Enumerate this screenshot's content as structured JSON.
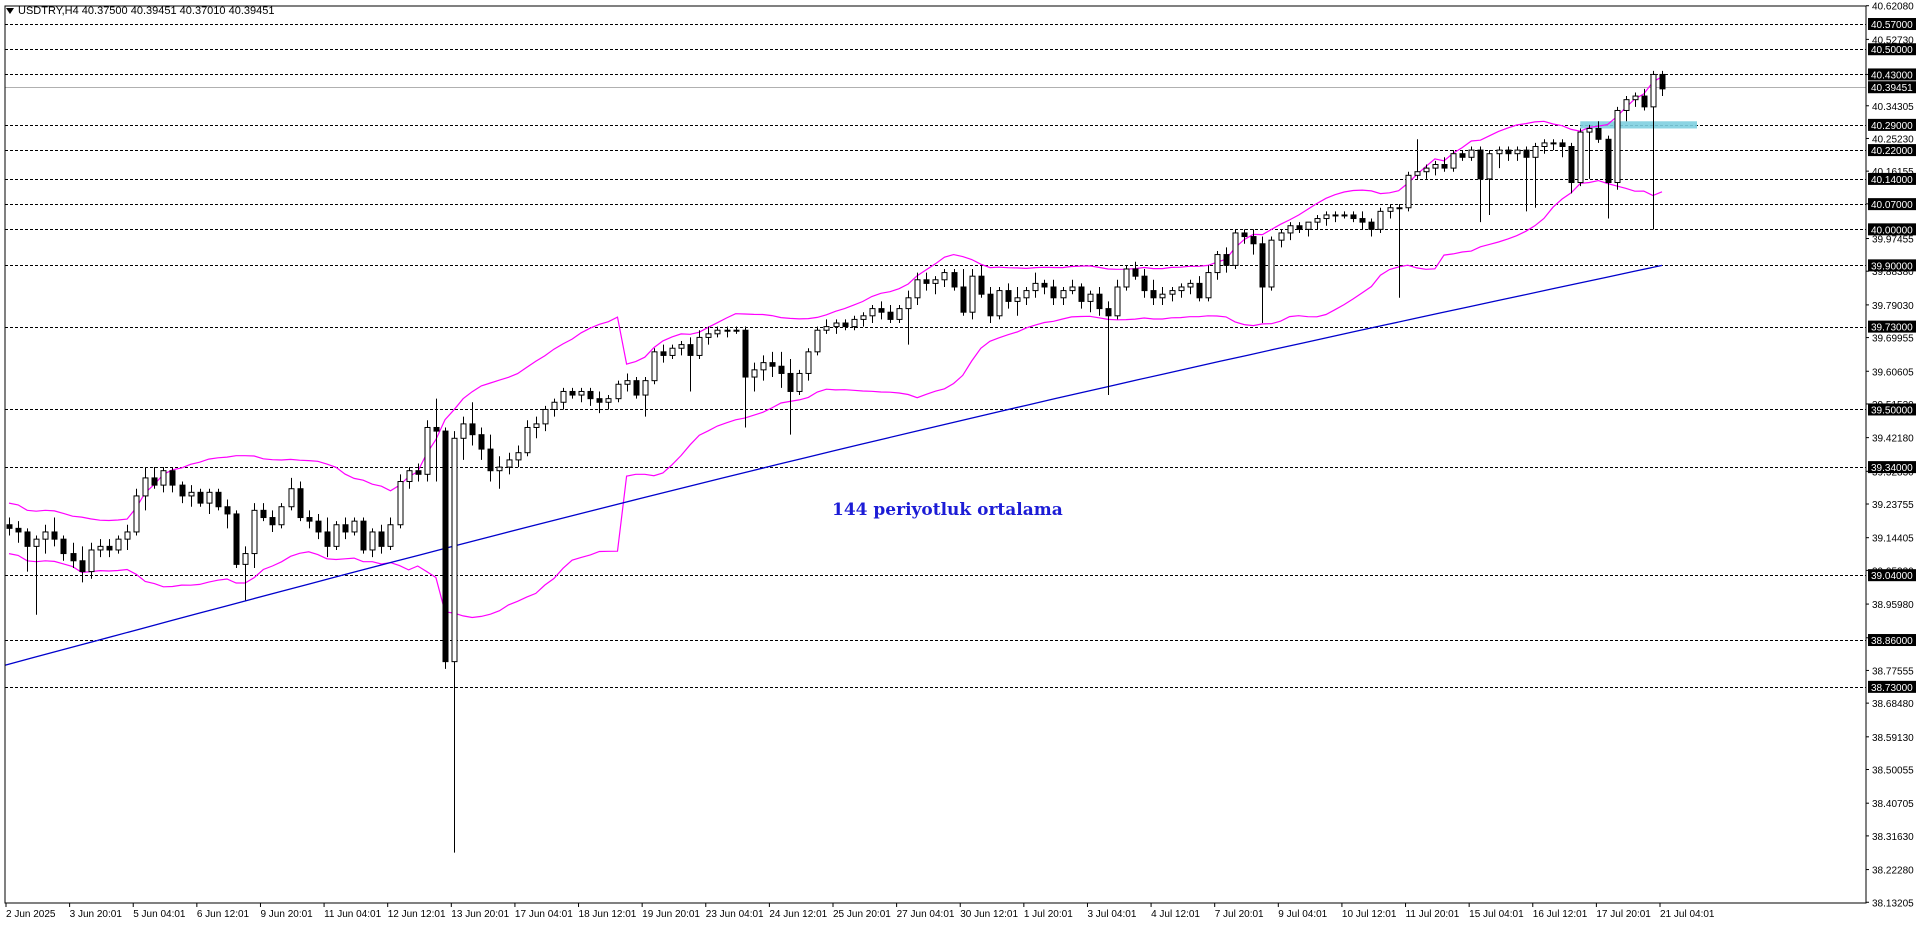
{
  "header": {
    "symbol_line": "USDTRY,H4  40.37500 40.39451 40.37010 40.39451"
  },
  "annotation": {
    "text": "144 periyotluk ortalama",
    "color": "#1c1cd6"
  },
  "colors": {
    "background": "#ffffff",
    "candle": "#000000",
    "bollinger": "#ff00ff",
    "moving_average": "#0000cc",
    "zone": "#7ecfe0",
    "grid_dash": "#000000"
  },
  "chart_data": {
    "type": "candlestick",
    "title": "",
    "symbol": "USDTRY",
    "timeframe": "H4",
    "ylim": [
      38.13,
      40.62
    ],
    "y_axis_labels": [
      "40.62080",
      "40.52730",
      "40.43000",
      "40.34305",
      "40.25230",
      "40.16155",
      "40.07080",
      "39.97455",
      "39.88380",
      "39.79030",
      "39.69955",
      "39.60605",
      "39.51530",
      "39.42180",
      "39.32830",
      "39.23755",
      "39.14405",
      "39.05330",
      "38.95980",
      "38.86630",
      "38.77555",
      "38.68480",
      "38.59130",
      "38.50055",
      "38.40705",
      "38.31630",
      "38.22280",
      "38.13205"
    ],
    "x_labels": [
      "2 Jun 2025",
      "3 Jun 20:01",
      "5 Jun 04:01",
      "6 Jun 12:01",
      "9 Jun 20:01",
      "11 Jun 04:01",
      "12 Jun 12:01",
      "13 Jun 20:01",
      "17 Jun 04:01",
      "18 Jun 12:01",
      "19 Jun 20:01",
      "23 Jun 04:01",
      "24 Jun 12:01",
      "25 Jun 20:01",
      "27 Jun 04:01",
      "30 Jun 12:01",
      "1 Jul 20:01",
      "3 Jul 04:01",
      "4 Jul 12:01",
      "7 Jul 20:01",
      "9 Jul 04:01",
      "10 Jul 12:01",
      "11 Jul 20:01",
      "15 Jul 04:01",
      "16 Jul 12:01",
      "17 Jul 20:01",
      "21 Jul 04:01"
    ],
    "horizontal_levels": [
      "40.57000",
      "40.50000",
      "40.43000",
      "40.29000",
      "40.22000",
      "40.14000",
      "40.07000",
      "40.00000",
      "39.90000",
      "39.73000",
      "39.50000",
      "39.34000",
      "39.04000",
      "38.86000",
      "38.73000"
    ],
    "current_price": "40.39451",
    "support_zone": [
      40.28,
      40.3
    ],
    "ohlc": [
      [
        39.18,
        39.2,
        39.15,
        39.17
      ],
      [
        39.17,
        39.19,
        39.13,
        39.16
      ],
      [
        39.16,
        39.17,
        39.05,
        39.12
      ],
      [
        39.12,
        39.15,
        38.93,
        39.14
      ],
      [
        39.14,
        39.18,
        39.1,
        39.16
      ],
      [
        39.16,
        39.2,
        39.12,
        39.14
      ],
      [
        39.14,
        39.15,
        39.08,
        39.1
      ],
      [
        39.1,
        39.13,
        39.06,
        39.08
      ],
      [
        39.08,
        39.12,
        39.02,
        39.05
      ],
      [
        39.05,
        39.13,
        39.03,
        39.11
      ],
      [
        39.11,
        39.14,
        39.09,
        39.12
      ],
      [
        39.12,
        39.14,
        39.09,
        39.11
      ],
      [
        39.11,
        39.15,
        39.1,
        39.14
      ],
      [
        39.14,
        39.18,
        39.11,
        39.16
      ],
      [
        39.16,
        39.28,
        39.15,
        39.26
      ],
      [
        39.26,
        39.34,
        39.22,
        39.31
      ],
      [
        39.31,
        39.34,
        39.28,
        39.29
      ],
      [
        39.29,
        39.34,
        39.27,
        39.33
      ],
      [
        39.33,
        39.34,
        39.27,
        39.29
      ],
      [
        39.29,
        39.3,
        39.24,
        39.26
      ],
      [
        39.26,
        39.29,
        39.23,
        39.27
      ],
      [
        39.27,
        39.28,
        39.23,
        39.24
      ],
      [
        39.24,
        39.28,
        39.21,
        39.27
      ],
      [
        39.27,
        39.28,
        39.22,
        39.23
      ],
      [
        39.23,
        39.25,
        39.17,
        39.21
      ],
      [
        39.21,
        39.22,
        39.06,
        39.07
      ],
      [
        39.07,
        39.12,
        38.97,
        39.1
      ],
      [
        39.1,
        39.24,
        39.06,
        39.22
      ],
      [
        39.22,
        39.24,
        39.19,
        39.2
      ],
      [
        39.2,
        39.22,
        39.16,
        39.18
      ],
      [
        39.18,
        39.24,
        39.17,
        39.23
      ],
      [
        39.23,
        39.31,
        39.22,
        39.28
      ],
      [
        39.28,
        39.3,
        39.19,
        39.2
      ],
      [
        39.2,
        39.22,
        39.17,
        39.19
      ],
      [
        39.19,
        39.21,
        39.14,
        39.16
      ],
      [
        39.16,
        39.2,
        39.09,
        39.12
      ],
      [
        39.12,
        39.19,
        39.11,
        39.18
      ],
      [
        39.18,
        39.2,
        39.14,
        39.16
      ],
      [
        39.16,
        39.2,
        39.15,
        39.19
      ],
      [
        39.19,
        39.2,
        39.1,
        39.11
      ],
      [
        39.11,
        39.17,
        39.09,
        39.16
      ],
      [
        39.16,
        39.18,
        39.1,
        39.12
      ],
      [
        39.12,
        39.2,
        39.11,
        39.18
      ],
      [
        39.18,
        39.32,
        39.17,
        39.3
      ],
      [
        39.3,
        39.34,
        39.28,
        39.33
      ],
      [
        39.33,
        39.35,
        39.3,
        39.32
      ],
      [
        39.32,
        39.47,
        39.3,
        39.45
      ],
      [
        39.45,
        39.53,
        39.3,
        39.44
      ],
      [
        39.44,
        39.45,
        38.78,
        38.8
      ],
      [
        38.8,
        39.44,
        38.27,
        39.42
      ],
      [
        39.42,
        39.48,
        39.36,
        39.46
      ],
      [
        39.46,
        39.52,
        39.4,
        39.43
      ],
      [
        39.43,
        39.45,
        39.36,
        39.39
      ],
      [
        39.39,
        39.43,
        39.3,
        39.33
      ],
      [
        39.33,
        39.37,
        39.28,
        39.34
      ],
      [
        39.34,
        39.38,
        39.32,
        39.36
      ],
      [
        39.36,
        39.4,
        39.34,
        39.38
      ],
      [
        39.38,
        39.47,
        39.37,
        39.45
      ],
      [
        39.45,
        39.48,
        39.42,
        39.46
      ],
      [
        39.46,
        39.51,
        39.44,
        39.5
      ],
      [
        39.5,
        39.53,
        39.48,
        39.52
      ],
      [
        39.52,
        39.56,
        39.5,
        39.55
      ],
      [
        39.55,
        39.56,
        39.53,
        39.54
      ],
      [
        39.54,
        39.56,
        39.52,
        39.55
      ],
      [
        39.55,
        39.56,
        39.51,
        39.53
      ],
      [
        39.53,
        39.55,
        39.49,
        39.52
      ],
      [
        39.52,
        39.54,
        39.5,
        39.53
      ],
      [
        39.53,
        39.58,
        39.52,
        39.57
      ],
      [
        39.57,
        39.6,
        39.55,
        39.58
      ],
      [
        39.58,
        39.59,
        39.53,
        39.54
      ],
      [
        39.54,
        39.59,
        39.48,
        39.58
      ],
      [
        39.58,
        39.67,
        39.57,
        39.66
      ],
      [
        39.66,
        39.68,
        39.63,
        39.65
      ],
      [
        39.65,
        39.68,
        39.64,
        39.67
      ],
      [
        39.67,
        39.69,
        39.65,
        39.68
      ],
      [
        39.68,
        39.7,
        39.55,
        39.65
      ],
      [
        39.65,
        39.72,
        39.64,
        39.7
      ],
      [
        39.7,
        39.73,
        39.68,
        39.71
      ],
      [
        39.71,
        39.73,
        39.7,
        39.72
      ],
      [
        39.72,
        39.73,
        39.7,
        39.72
      ],
      [
        39.72,
        39.73,
        39.71,
        39.72
      ],
      [
        39.72,
        39.73,
        39.45,
        39.59
      ],
      [
        39.59,
        39.63,
        39.55,
        39.61
      ],
      [
        39.61,
        39.65,
        39.58,
        39.63
      ],
      [
        39.63,
        39.66,
        39.59,
        39.62
      ],
      [
        39.62,
        39.66,
        39.56,
        39.6
      ],
      [
        39.6,
        39.64,
        39.43,
        39.55
      ],
      [
        39.55,
        39.61,
        39.54,
        39.6
      ],
      [
        39.6,
        39.67,
        39.58,
        39.66
      ],
      [
        39.66,
        39.73,
        39.65,
        39.72
      ],
      [
        39.72,
        39.75,
        39.71,
        39.73
      ],
      [
        39.73,
        39.75,
        39.71,
        39.74
      ],
      [
        39.74,
        39.75,
        39.72,
        39.73
      ],
      [
        39.73,
        39.76,
        39.72,
        39.75
      ],
      [
        39.75,
        39.77,
        39.73,
        39.76
      ],
      [
        39.76,
        39.79,
        39.74,
        39.78
      ],
      [
        39.78,
        39.8,
        39.75,
        39.77
      ],
      [
        39.77,
        39.79,
        39.74,
        39.75
      ],
      [
        39.75,
        39.79,
        39.74,
        39.78
      ],
      [
        39.78,
        39.83,
        39.68,
        39.81
      ],
      [
        39.81,
        39.88,
        39.79,
        39.86
      ],
      [
        39.86,
        39.88,
        39.83,
        39.85
      ],
      [
        39.85,
        39.87,
        39.82,
        39.86
      ],
      [
        39.86,
        39.89,
        39.84,
        39.88
      ],
      [
        39.88,
        39.89,
        39.83,
        39.84
      ],
      [
        39.84,
        39.89,
        39.76,
        39.77
      ],
      [
        39.77,
        39.89,
        39.75,
        39.87
      ],
      [
        39.87,
        39.9,
        39.81,
        39.82
      ],
      [
        39.82,
        39.84,
        39.74,
        39.76
      ],
      [
        39.76,
        39.84,
        39.75,
        39.83
      ],
      [
        39.83,
        39.85,
        39.78,
        39.8
      ],
      [
        39.8,
        39.84,
        39.76,
        39.81
      ],
      [
        39.81,
        39.84,
        39.79,
        39.83
      ],
      [
        39.83,
        39.88,
        39.81,
        39.85
      ],
      [
        39.85,
        39.86,
        39.82,
        39.84
      ],
      [
        39.84,
        39.86,
        39.79,
        39.81
      ],
      [
        39.81,
        39.84,
        39.79,
        39.83
      ],
      [
        39.83,
        39.86,
        39.82,
        39.84
      ],
      [
        39.84,
        39.85,
        39.78,
        39.8
      ],
      [
        39.8,
        39.83,
        39.77,
        39.82
      ],
      [
        39.82,
        39.84,
        39.76,
        39.78
      ],
      [
        39.78,
        39.8,
        39.54,
        39.76
      ],
      [
        39.76,
        39.86,
        39.75,
        39.84
      ],
      [
        39.84,
        39.9,
        39.83,
        39.89
      ],
      [
        39.89,
        39.91,
        39.86,
        39.87
      ],
      [
        39.87,
        39.89,
        39.81,
        39.83
      ],
      [
        39.83,
        39.86,
        39.79,
        39.81
      ],
      [
        39.81,
        39.84,
        39.79,
        39.82
      ],
      [
        39.82,
        39.84,
        39.8,
        39.83
      ],
      [
        39.83,
        39.85,
        39.81,
        39.84
      ],
      [
        39.84,
        39.86,
        39.82,
        39.85
      ],
      [
        39.85,
        39.87,
        39.8,
        39.81
      ],
      [
        39.81,
        39.9,
        39.8,
        39.88
      ],
      [
        39.88,
        39.94,
        39.86,
        39.93
      ],
      [
        39.93,
        39.95,
        39.88,
        39.9
      ],
      [
        39.9,
        40.0,
        39.89,
        39.99
      ],
      [
        39.99,
        40.0,
        39.96,
        39.98
      ],
      [
        39.98,
        40.0,
        39.93,
        39.96
      ],
      [
        39.96,
        39.98,
        39.74,
        39.84
      ],
      [
        39.84,
        39.98,
        39.83,
        39.97
      ],
      [
        39.97,
        40.0,
        39.95,
        39.99
      ],
      [
        39.99,
        40.02,
        39.97,
        40.01
      ],
      [
        40.01,
        40.02,
        39.99,
        40.0
      ],
      [
        40.0,
        40.02,
        39.98,
        40.02
      ],
      [
        40.02,
        40.04,
        40.0,
        40.03
      ],
      [
        40.03,
        40.05,
        40.01,
        40.04
      ],
      [
        40.04,
        40.05,
        40.02,
        40.04
      ],
      [
        40.04,
        40.05,
        40.03,
        40.04
      ],
      [
        40.04,
        40.05,
        40.02,
        40.03
      ],
      [
        40.03,
        40.05,
        40.0,
        40.02
      ],
      [
        40.02,
        40.03,
        39.98,
        40.0
      ],
      [
        40.0,
        40.06,
        39.99,
        40.05
      ],
      [
        40.05,
        40.07,
        40.03,
        40.06
      ],
      [
        40.06,
        40.07,
        39.81,
        40.06
      ],
      [
        40.06,
        40.16,
        40.05,
        40.15
      ],
      [
        40.15,
        40.25,
        40.14,
        40.16
      ],
      [
        40.16,
        40.18,
        40.14,
        40.17
      ],
      [
        40.17,
        40.19,
        40.15,
        40.18
      ],
      [
        40.18,
        40.2,
        40.16,
        40.17
      ],
      [
        40.17,
        40.22,
        40.16,
        40.21
      ],
      [
        40.21,
        40.22,
        40.19,
        40.2
      ],
      [
        40.2,
        40.23,
        40.19,
        40.22
      ],
      [
        40.22,
        40.23,
        40.02,
        40.14
      ],
      [
        40.14,
        40.22,
        40.04,
        40.21
      ],
      [
        40.21,
        40.23,
        40.17,
        40.22
      ],
      [
        40.22,
        40.23,
        40.19,
        40.21
      ],
      [
        40.21,
        40.23,
        40.19,
        40.22
      ],
      [
        40.22,
        40.23,
        40.05,
        40.2
      ],
      [
        40.2,
        40.24,
        40.06,
        40.23
      ],
      [
        40.23,
        40.25,
        40.21,
        40.24
      ],
      [
        40.24,
        40.25,
        40.22,
        40.24
      ],
      [
        40.24,
        40.25,
        40.2,
        40.23
      ],
      [
        40.23,
        40.24,
        40.1,
        40.13
      ],
      [
        40.13,
        40.28,
        40.12,
        40.27
      ],
      [
        40.27,
        40.29,
        40.14,
        40.28
      ],
      [
        40.28,
        40.3,
        40.24,
        40.25
      ],
      [
        40.25,
        40.26,
        40.03,
        40.13
      ],
      [
        40.13,
        40.34,
        40.11,
        40.33
      ],
      [
        40.33,
        40.37,
        40.3,
        40.36
      ],
      [
        40.36,
        40.38,
        40.34,
        40.37
      ],
      [
        40.37,
        40.39,
        40.33,
        40.34
      ],
      [
        40.34,
        40.44,
        40.0,
        40.43
      ],
      [
        40.43,
        40.44,
        40.37,
        40.39
      ]
    ],
    "moving_average": {
      "period": 144,
      "start": 38.79,
      "end": 39.9
    }
  }
}
